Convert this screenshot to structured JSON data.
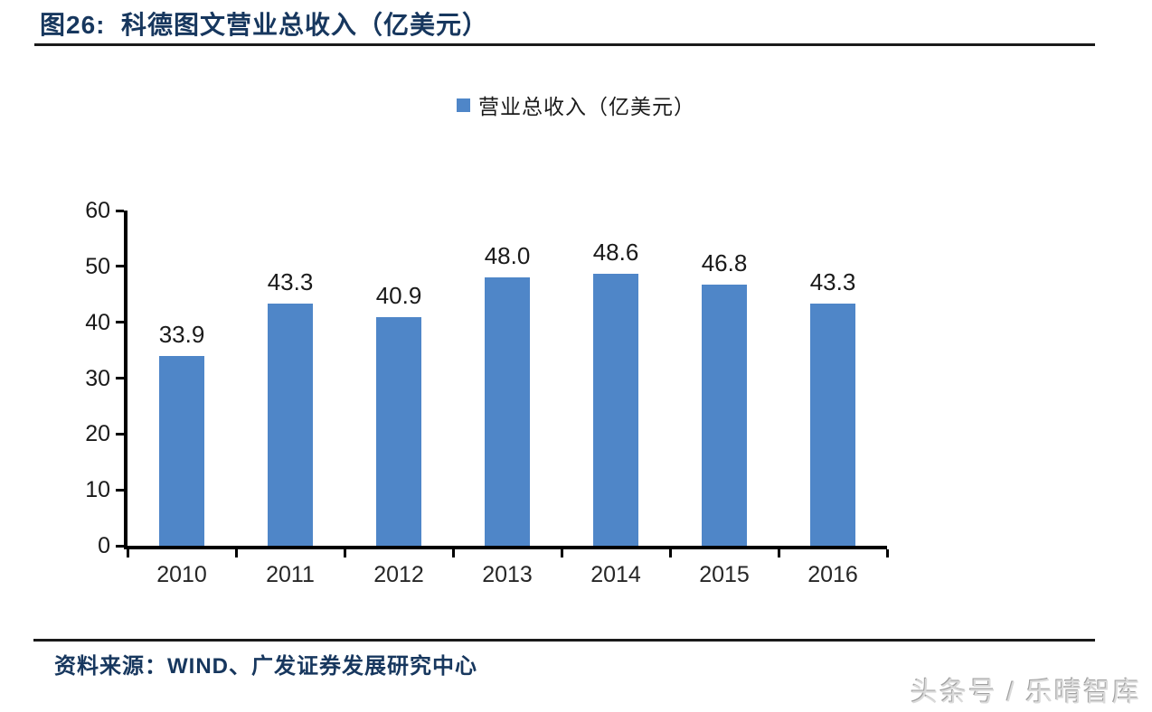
{
  "title": "图26:  科德图文营业总收入（亿美元）",
  "legend": {
    "label": "营业总收入（亿美元）",
    "swatch_color": "#4F86C8"
  },
  "source": "资料来源：WIND、广发证券发展研究中心",
  "watermark": "头条号 / 乐晴智库",
  "chart_data": {
    "type": "bar",
    "title": "科德图文营业总收入（亿美元）",
    "categories": [
      "2010",
      "2011",
      "2012",
      "2013",
      "2014",
      "2015",
      "2016"
    ],
    "series": [
      {
        "name": "营业总收入（亿美元）",
        "values": [
          33.9,
          43.3,
          40.9,
          48.0,
          48.6,
          46.8,
          43.3
        ]
      }
    ],
    "value_labels": [
      "33.9",
      "43.3",
      "40.9",
      "48.0",
      "48.6",
      "46.8",
      "43.3"
    ],
    "xlabel": "",
    "ylabel": "",
    "ylim": [
      0,
      60
    ],
    "yticks": [
      0,
      10,
      20,
      30,
      40,
      50,
      60
    ],
    "bar_color": "#4F86C8",
    "axis_color": "#000000",
    "grid": false,
    "legend_position": "top"
  }
}
